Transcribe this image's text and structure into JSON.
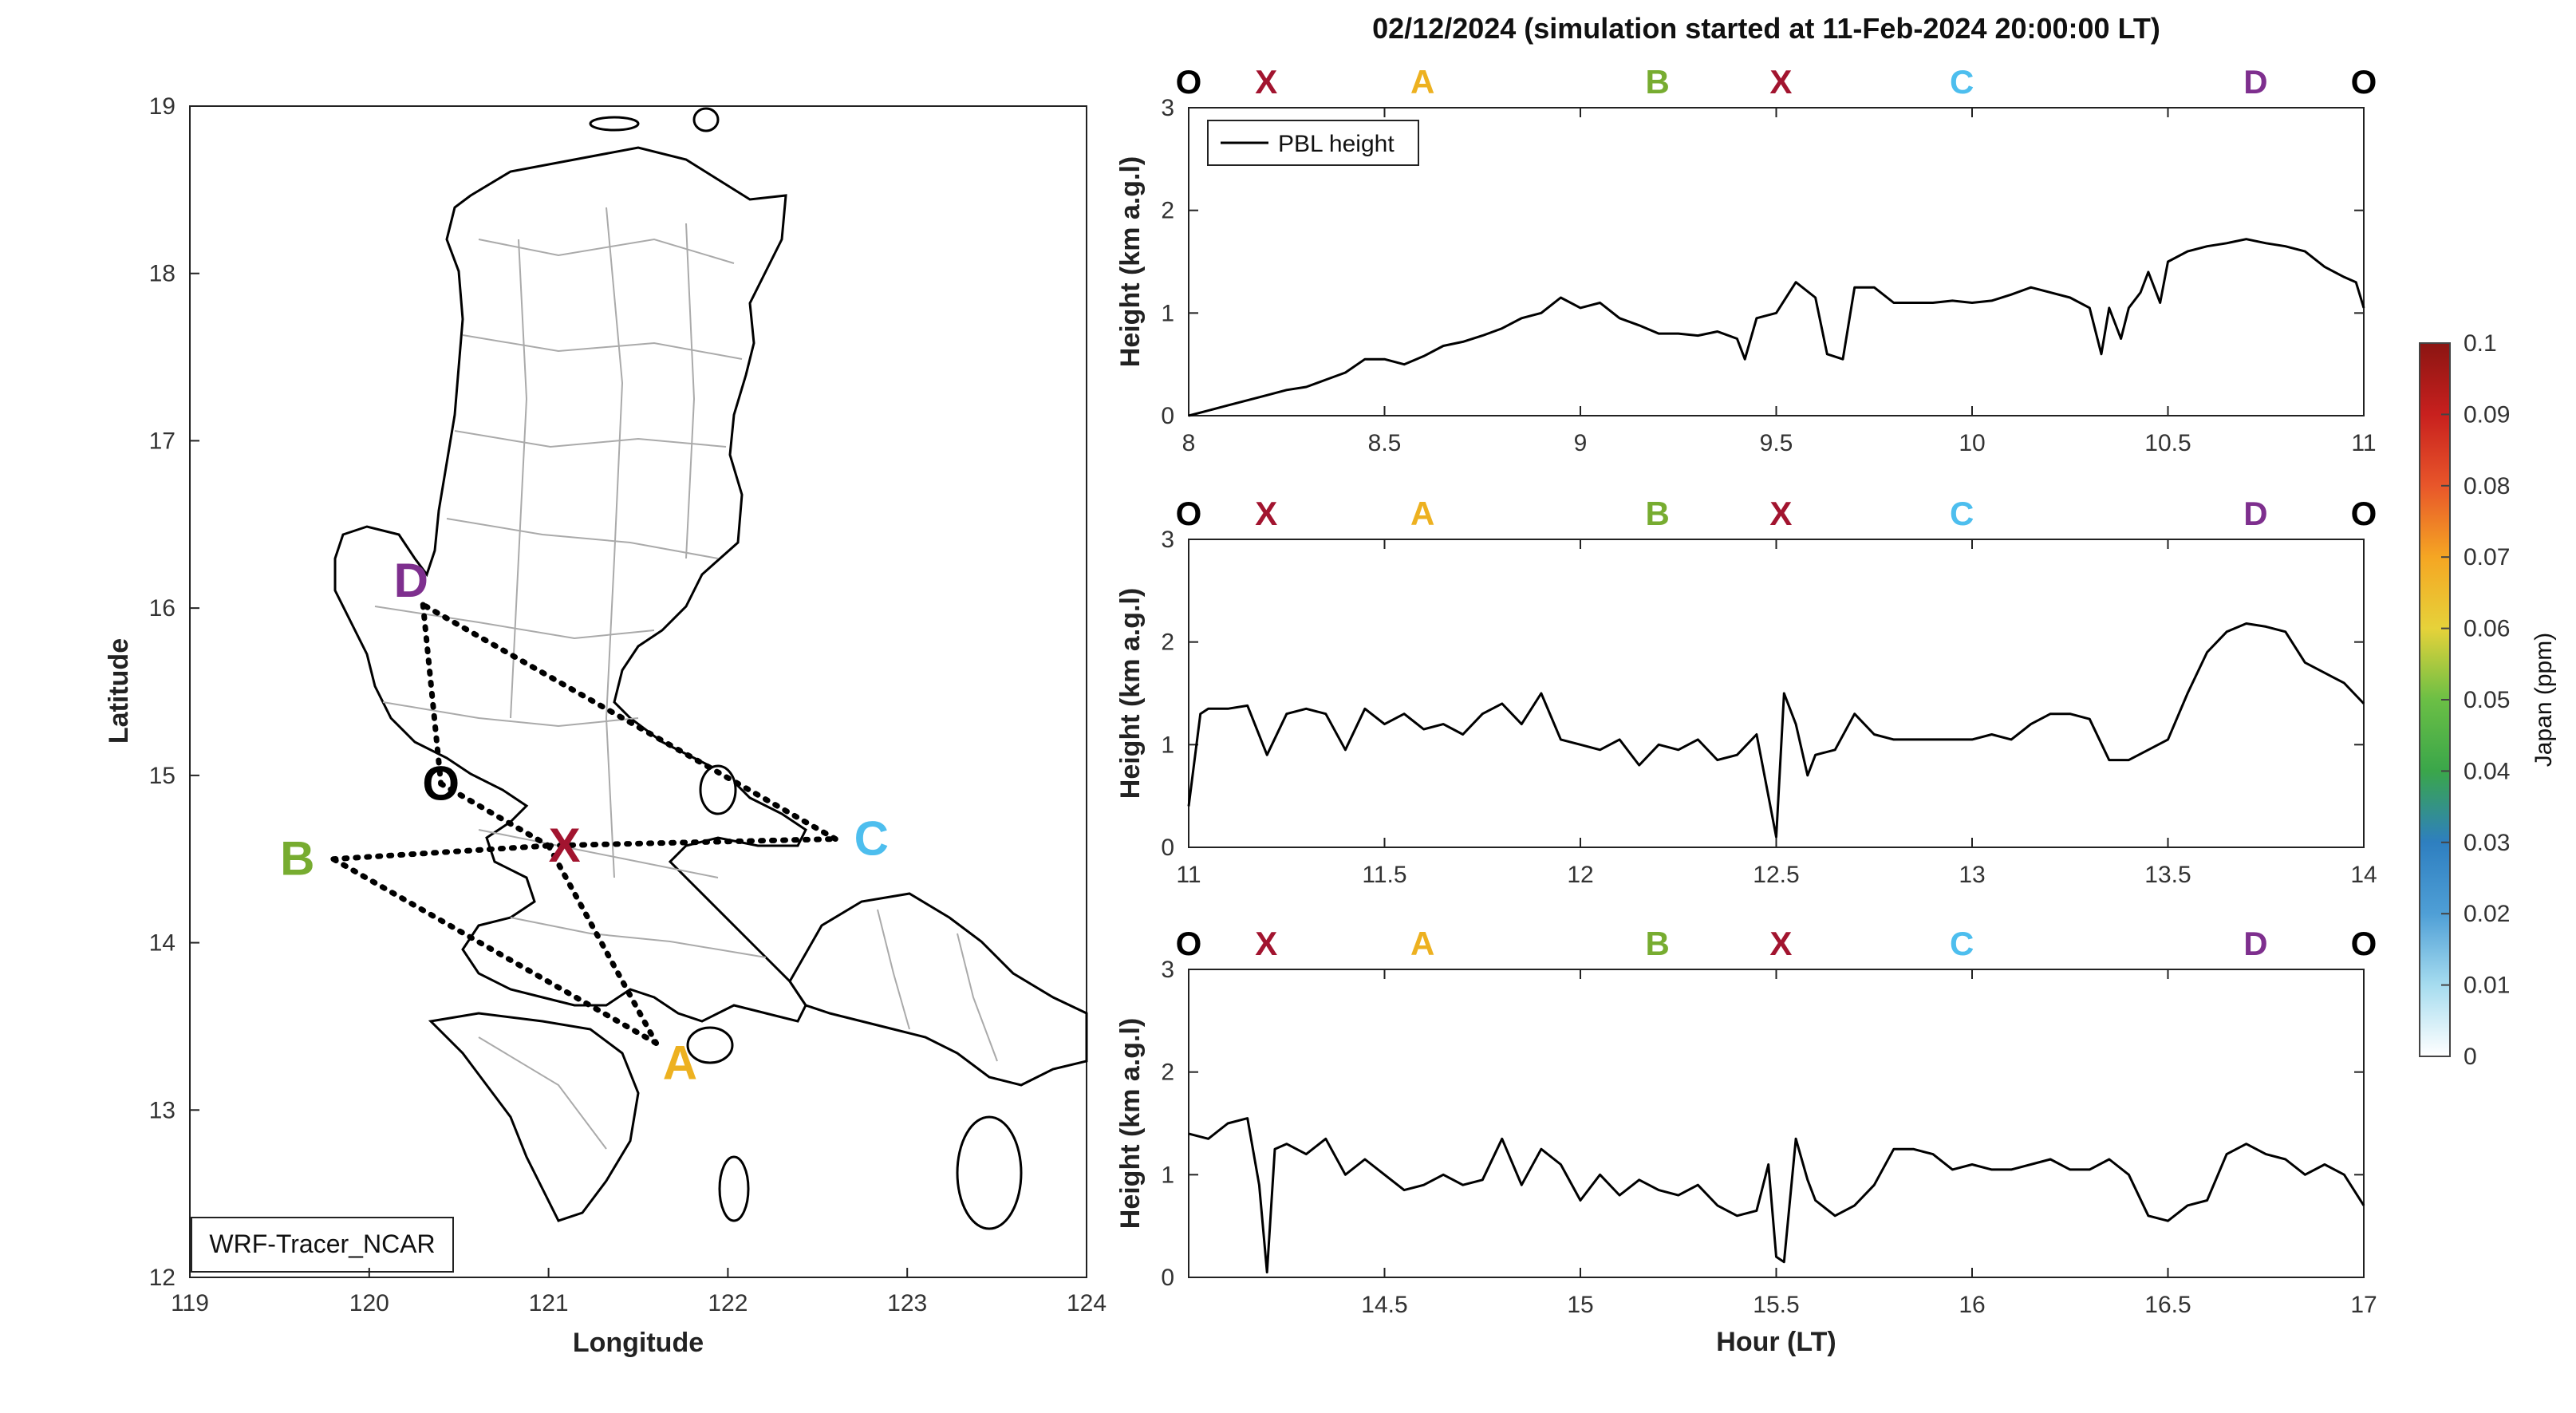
{
  "title": "02/12/2024 (simulation started at 11-Feb-2024 20:00:00 LT)",
  "segments": [
    {
      "label": "O",
      "color": "#000000",
      "t": 0.0
    },
    {
      "label": "X",
      "color": "#A2142F",
      "t": 0.066
    },
    {
      "label": "A",
      "color": "#EDB120",
      "t": 0.199
    },
    {
      "label": "B",
      "color": "#77AC30",
      "t": 0.399
    },
    {
      "label": "X",
      "color": "#A2142F",
      "t": 0.504
    },
    {
      "label": "C",
      "color": "#4DBEEE",
      "t": 0.658
    },
    {
      "label": "D",
      "color": "#7E2F8E",
      "t": 0.908
    },
    {
      "label": "O",
      "color": "#000000",
      "t": 1.0
    }
  ],
  "map": {
    "xlabel": "Longitude",
    "ylabel": "Latitude",
    "xticks": [
      "119",
      "120",
      "121",
      "122",
      "123",
      "124"
    ],
    "yticks": [
      "12",
      "13",
      "14",
      "15",
      "16",
      "17",
      "18",
      "19"
    ],
    "source_label": "WRF-Tracer_NCAR",
    "points": [
      {
        "label": "O",
        "color": "#000000",
        "lon": 120.4,
        "lat": 14.95
      },
      {
        "label": "X",
        "color": "#A2142F",
        "lon": 121.0,
        "lat": 14.58
      },
      {
        "label": "A",
        "color": "#EDB120",
        "lon": 121.6,
        "lat": 13.4
      },
      {
        "label": "B",
        "color": "#77AC30",
        "lon": 119.8,
        "lat": 14.5
      },
      {
        "label": "C",
        "color": "#4DBEEE",
        "lon": 122.6,
        "lat": 14.62
      },
      {
        "label": "D",
        "color": "#7E2F8E",
        "lon": 120.3,
        "lat": 16.02
      }
    ]
  },
  "colorbar": {
    "label": "Japan (ppm)",
    "ticks": [
      "0",
      "0.01",
      "0.02",
      "0.03",
      "0.04",
      "0.05",
      "0.06",
      "0.07",
      "0.08",
      "0.09",
      "0.1"
    ],
    "colors": [
      "#ffffff",
      "#a6dcef",
      "#4f9fd6",
      "#2e7fc0",
      "#3aa64a",
      "#6bbf45",
      "#e6d23a",
      "#f5a623",
      "#e8562a",
      "#c8201e",
      "#8b1512"
    ]
  },
  "chart_data": [
    {
      "type": "line",
      "xlabel": "",
      "ylabel": "Height (km a.g.l)",
      "legend": "PBL height",
      "xlim": [
        8,
        11
      ],
      "ylim": [
        0,
        3
      ],
      "xticks": [
        "8",
        "8.5",
        "9",
        "9.5",
        "10",
        "10.5",
        "11"
      ],
      "yticks": [
        "0",
        "1",
        "2",
        "3"
      ],
      "series": [
        {
          "name": "PBL height",
          "x": [
            8.0,
            8.05,
            8.1,
            8.15,
            8.2,
            8.25,
            8.3,
            8.35,
            8.4,
            8.45,
            8.5,
            8.55,
            8.6,
            8.65,
            8.7,
            8.75,
            8.8,
            8.85,
            8.9,
            8.95,
            9.0,
            9.05,
            9.1,
            9.15,
            9.2,
            9.25,
            9.3,
            9.35,
            9.4,
            9.42,
            9.45,
            9.5,
            9.55,
            9.6,
            9.63,
            9.67,
            9.7,
            9.75,
            9.8,
            9.85,
            9.9,
            9.95,
            10.0,
            10.05,
            10.1,
            10.15,
            10.2,
            10.25,
            10.3,
            10.33,
            10.35,
            10.38,
            10.4,
            10.43,
            10.45,
            10.48,
            10.5,
            10.55,
            10.6,
            10.65,
            10.7,
            10.75,
            10.8,
            10.85,
            10.9,
            10.95,
            10.98,
            11.0
          ],
          "y": [
            0.0,
            0.05,
            0.1,
            0.15,
            0.2,
            0.25,
            0.28,
            0.35,
            0.42,
            0.55,
            0.55,
            0.5,
            0.58,
            0.68,
            0.72,
            0.78,
            0.85,
            0.95,
            1.0,
            1.15,
            1.05,
            1.1,
            0.95,
            0.88,
            0.8,
            0.8,
            0.78,
            0.82,
            0.75,
            0.55,
            0.95,
            1.0,
            1.3,
            1.15,
            0.6,
            0.55,
            1.25,
            1.25,
            1.1,
            1.1,
            1.1,
            1.12,
            1.1,
            1.12,
            1.18,
            1.25,
            1.2,
            1.15,
            1.05,
            0.6,
            1.05,
            0.75,
            1.05,
            1.2,
            1.4,
            1.1,
            1.5,
            1.6,
            1.65,
            1.68,
            1.72,
            1.68,
            1.65,
            1.6,
            1.45,
            1.35,
            1.3,
            1.05
          ]
        }
      ]
    },
    {
      "type": "line",
      "xlabel": "",
      "ylabel": "Height (km a.g.l)",
      "xlim": [
        11,
        14
      ],
      "ylim": [
        0,
        3
      ],
      "xticks": [
        "11",
        "11.5",
        "12",
        "12.5",
        "13",
        "13.5",
        "14"
      ],
      "yticks": [
        "0",
        "1",
        "2",
        "3"
      ],
      "series": [
        {
          "name": "PBL height",
          "x": [
            11.0,
            11.03,
            11.05,
            11.1,
            11.15,
            11.2,
            11.25,
            11.3,
            11.35,
            11.4,
            11.45,
            11.5,
            11.55,
            11.6,
            11.65,
            11.7,
            11.75,
            11.8,
            11.85,
            11.9,
            11.95,
            12.0,
            12.05,
            12.1,
            12.15,
            12.2,
            12.25,
            12.3,
            12.35,
            12.4,
            12.45,
            12.48,
            12.5,
            12.52,
            12.55,
            12.58,
            12.6,
            12.65,
            12.7,
            12.75,
            12.8,
            12.85,
            12.9,
            12.95,
            13.0,
            13.05,
            13.1,
            13.15,
            13.2,
            13.25,
            13.3,
            13.35,
            13.4,
            13.45,
            13.5,
            13.55,
            13.6,
            13.65,
            13.7,
            13.75,
            13.8,
            13.85,
            13.9,
            13.95,
            14.0
          ],
          "y": [
            0.4,
            1.3,
            1.35,
            1.35,
            1.38,
            0.9,
            1.3,
            1.35,
            1.3,
            0.95,
            1.35,
            1.2,
            1.3,
            1.15,
            1.2,
            1.1,
            1.3,
            1.4,
            1.2,
            1.5,
            1.05,
            1.0,
            0.95,
            1.05,
            0.8,
            1.0,
            0.95,
            1.05,
            0.85,
            0.9,
            1.1,
            0.5,
            0.1,
            1.5,
            1.2,
            0.7,
            0.9,
            0.95,
            1.3,
            1.1,
            1.05,
            1.05,
            1.05,
            1.05,
            1.05,
            1.1,
            1.05,
            1.2,
            1.3,
            1.3,
            1.25,
            0.85,
            0.85,
            0.95,
            1.05,
            1.5,
            1.9,
            2.1,
            2.18,
            2.15,
            2.1,
            1.8,
            1.7,
            1.6,
            1.4
          ]
        }
      ]
    },
    {
      "type": "line",
      "xlabel": "Hour (LT)",
      "ylabel": "Height (km a.g.l)",
      "xlim": [
        14,
        17
      ],
      "ylim": [
        0,
        3
      ],
      "xticks": [
        "14.5",
        "15",
        "15.5",
        "16",
        "16.5",
        "17"
      ],
      "yticks": [
        "0",
        "1",
        "2",
        "3"
      ],
      "series": [
        {
          "name": "PBL height",
          "x": [
            14.0,
            14.05,
            14.1,
            14.15,
            14.18,
            14.2,
            14.22,
            14.25,
            14.3,
            14.35,
            14.4,
            14.45,
            14.5,
            14.55,
            14.6,
            14.65,
            14.7,
            14.75,
            14.8,
            14.85,
            14.9,
            14.95,
            15.0,
            15.05,
            15.1,
            15.15,
            15.2,
            15.25,
            15.3,
            15.35,
            15.4,
            15.45,
            15.48,
            15.5,
            15.52,
            15.55,
            15.58,
            15.6,
            15.65,
            15.7,
            15.75,
            15.8,
            15.85,
            15.9,
            15.95,
            16.0,
            16.05,
            16.1,
            16.15,
            16.2,
            16.25,
            16.3,
            16.35,
            16.4,
            16.45,
            16.5,
            16.55,
            16.6,
            16.65,
            16.7,
            16.75,
            16.8,
            16.85,
            16.9,
            16.95,
            17.0
          ],
          "y": [
            1.4,
            1.35,
            1.5,
            1.55,
            0.9,
            0.05,
            1.25,
            1.3,
            1.2,
            1.35,
            1.0,
            1.15,
            1.0,
            0.85,
            0.9,
            1.0,
            0.9,
            0.95,
            1.35,
            0.9,
            1.25,
            1.1,
            0.75,
            1.0,
            0.8,
            0.95,
            0.85,
            0.8,
            0.9,
            0.7,
            0.6,
            0.65,
            1.1,
            0.2,
            0.15,
            1.35,
            0.95,
            0.75,
            0.6,
            0.7,
            0.9,
            1.25,
            1.25,
            1.2,
            1.05,
            1.1,
            1.05,
            1.05,
            1.1,
            1.15,
            1.05,
            1.05,
            1.15,
            1.0,
            0.6,
            0.55,
            0.7,
            0.75,
            1.2,
            1.3,
            1.2,
            1.15,
            1.0,
            1.1,
            1.0,
            0.7
          ]
        }
      ]
    }
  ]
}
